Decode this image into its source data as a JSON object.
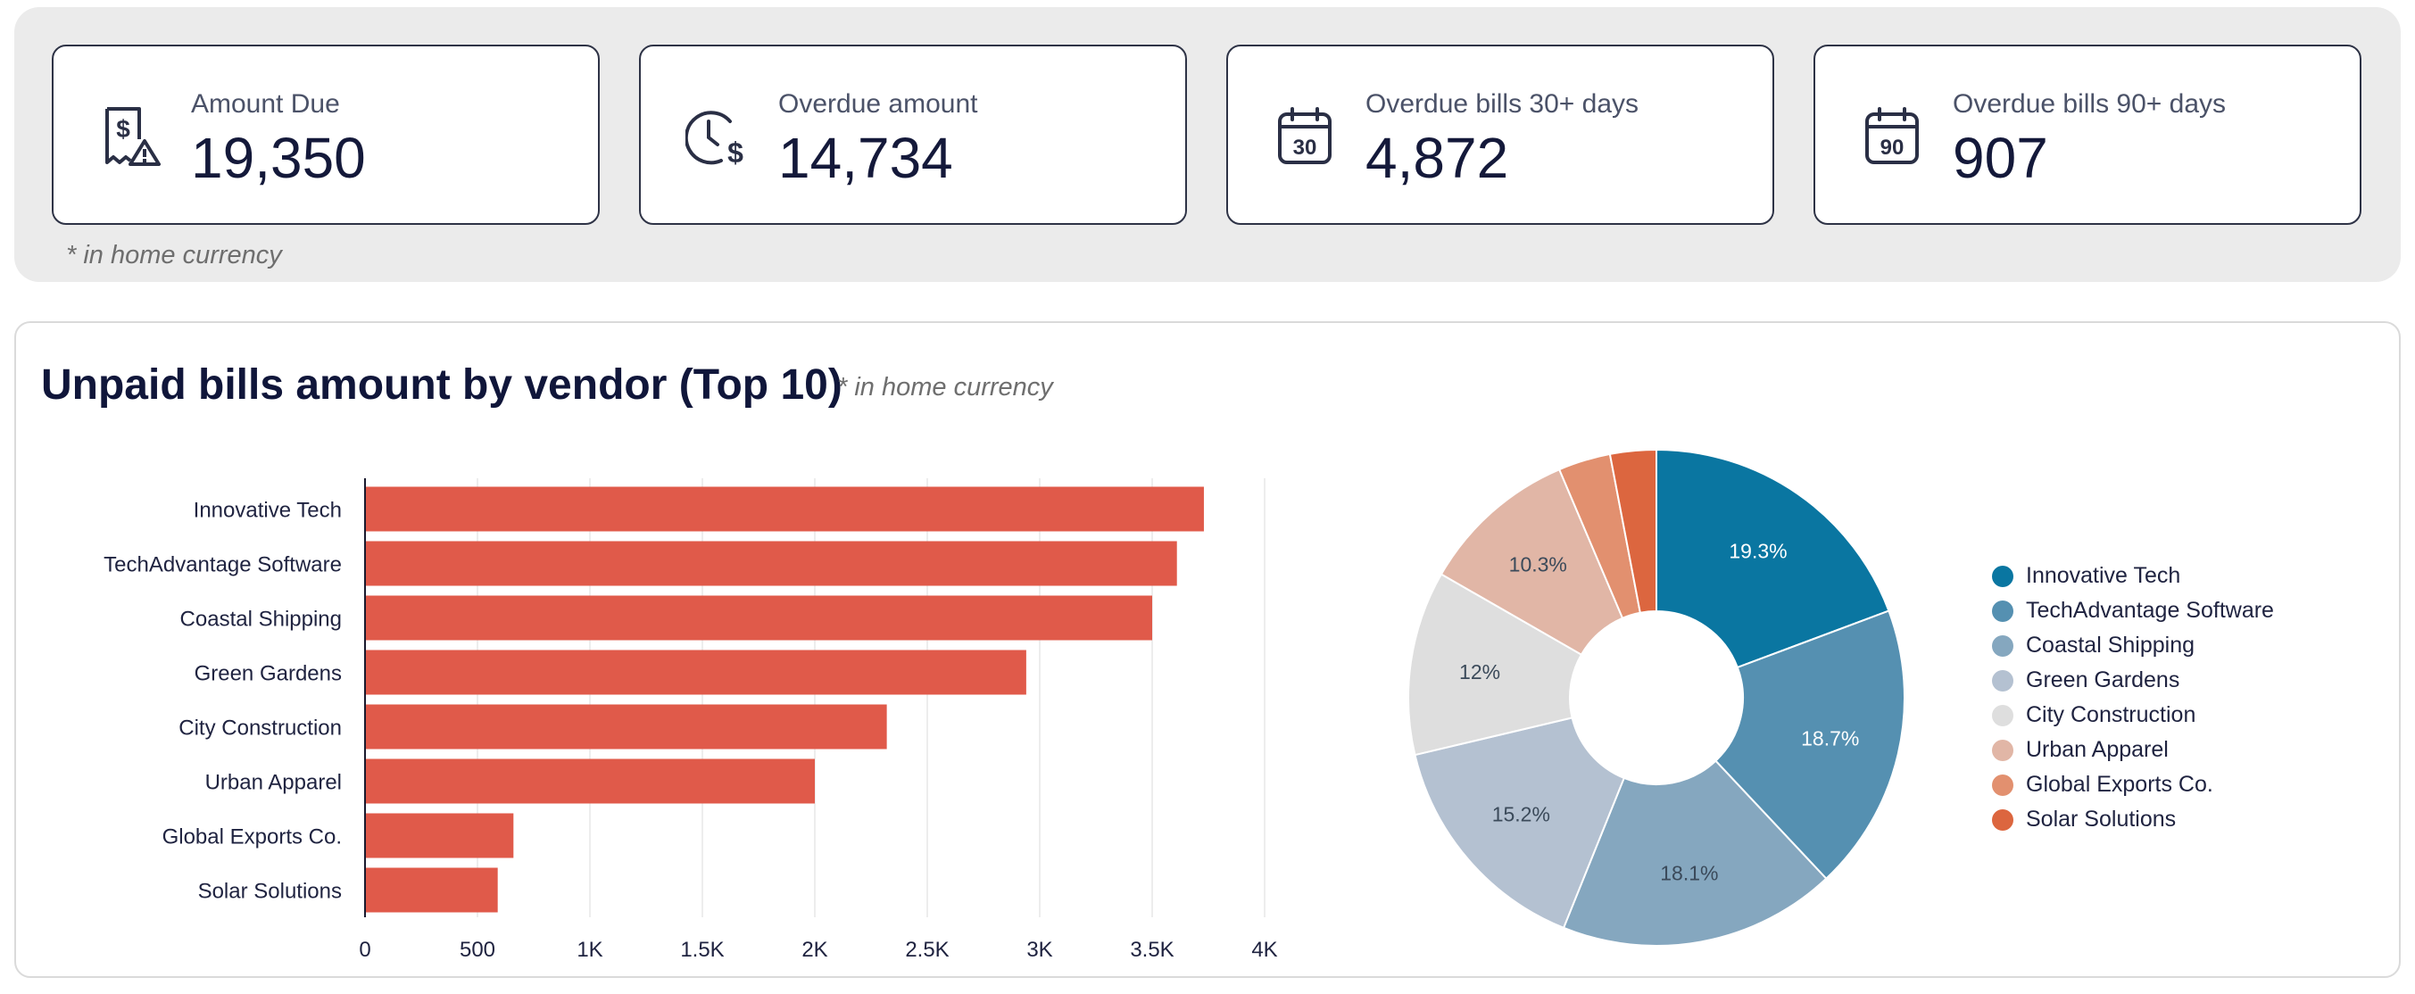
{
  "kpis": [
    {
      "label": "Amount Due",
      "value": "19,350",
      "icon": "receipt-warning-icon"
    },
    {
      "label": "Overdue amount",
      "value": "14,734",
      "icon": "clock-dollar-icon"
    },
    {
      "label": "Overdue bills 30+ days",
      "value": "4,872",
      "icon": "calendar-30-icon"
    },
    {
      "label": "Overdue bills 90+ days",
      "value": "907",
      "icon": "calendar-90-icon"
    }
  ],
  "icon_texts": {
    "cal30": "30",
    "cal90": "90",
    "dollar": "$"
  },
  "kpi_note": "* in home currency",
  "chart_section": {
    "title": "Unpaid bills amount by vendor (Top 10)",
    "note": "* in home currency"
  },
  "colors": {
    "bar": "#e05a4a",
    "pie": [
      "#0a76a1",
      "#5590b1",
      "#85a7bf",
      "#b4c1d1",
      "#dedede",
      "#e1b6a6",
      "#e2906f",
      "#dc663f"
    ]
  },
  "chart_data": [
    {
      "type": "bar",
      "orientation": "horizontal",
      "categories": [
        "Innovative Tech",
        "TechAdvantage Software",
        "Coastal Shipping",
        "Green Gardens",
        "City Construction",
        "Urban Apparel",
        "Global Exports Co.",
        "Solar Solutions"
      ],
      "values": [
        3730,
        3610,
        3500,
        2940,
        2320,
        2000,
        660,
        590
      ],
      "xlim": [
        0,
        4000
      ],
      "xticks": [
        0,
        500,
        1000,
        1500,
        2000,
        2500,
        3000,
        3500,
        4000
      ],
      "xtick_labels": [
        "0",
        "500",
        "1K",
        "1.5K",
        "2K",
        "2.5K",
        "3K",
        "3.5K",
        "4K"
      ]
    },
    {
      "type": "pie",
      "donut": true,
      "categories": [
        "Innovative Tech",
        "TechAdvantage Software",
        "Coastal Shipping",
        "Green Gardens",
        "City Construction",
        "Urban Apparel",
        "Global Exports Co.",
        "Solar Solutions"
      ],
      "values": [
        19.3,
        18.7,
        18.1,
        15.2,
        12.0,
        10.3,
        3.4,
        3.0
      ],
      "data_labels": [
        "19.3%",
        "18.7%",
        "18.1%",
        "15.2%",
        "12%",
        "10.3%",
        "",
        ""
      ],
      "legend_position": "right"
    }
  ]
}
